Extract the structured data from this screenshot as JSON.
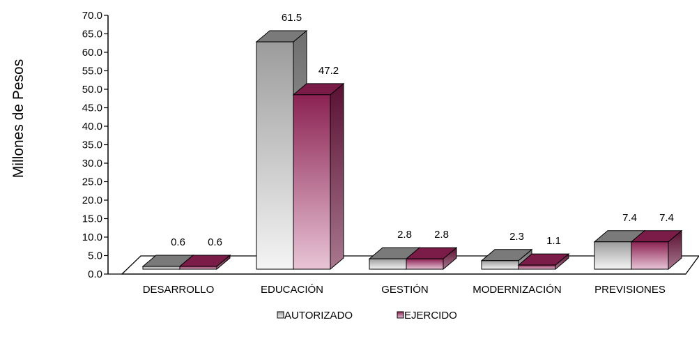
{
  "chart_data": {
    "type": "bar",
    "title": "",
    "xlabel": "",
    "ylabel": "Millones de Pesos",
    "ylim": [
      0,
      70
    ],
    "y_ticks": [
      "0.0",
      "5.0",
      "10.0",
      "15.0",
      "20.0",
      "25.0",
      "30.0",
      "35.0",
      "40.0",
      "45.0",
      "50.0",
      "55.0",
      "60.0",
      "65.0",
      "70.0"
    ],
    "categories": [
      "DESARROLLO",
      "EDUCACIÓN",
      "GESTIÓN",
      "MODERNIZACIÓN",
      "PREVISIONES"
    ],
    "series": [
      {
        "name": "AUTORIZADO",
        "values": [
          0.6,
          61.5,
          2.8,
          2.3,
          7.4
        ],
        "labels": [
          "0.6",
          "61.5",
          "2.8",
          "2.3",
          "7.4"
        ],
        "color": "#9a9a9a"
      },
      {
        "name": "EJERCIDO",
        "values": [
          0.6,
          47.2,
          2.8,
          1.1,
          7.4
        ],
        "labels": [
          "0.6",
          "47.2",
          "2.8",
          "1.1",
          "7.4"
        ],
        "color": "#8b2252"
      }
    ],
    "grid": false,
    "legend_position": "bottom",
    "style": "3d-bar"
  }
}
